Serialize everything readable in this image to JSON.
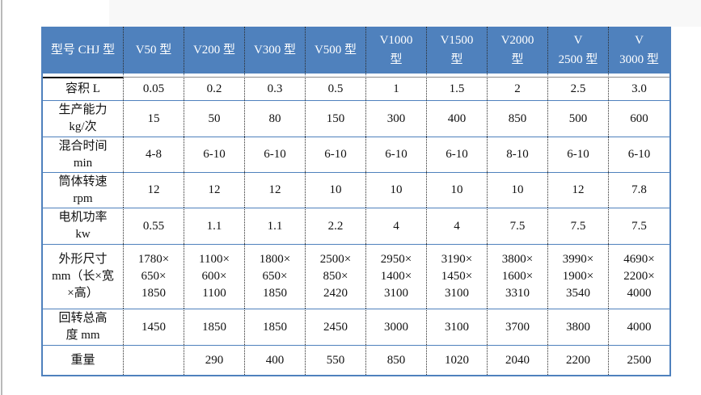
{
  "page": {
    "accent_blue": "#4f81bd",
    "border_dotted": "#2a2a2a"
  },
  "table": {
    "header": [
      "型号 CHJ 型",
      "V50 型",
      "V200 型",
      "V300 型",
      "V500 型",
      "V1000\n型",
      "V1500\n型",
      "V2000\n型",
      "V\n2500 型",
      "V\n3000 型"
    ],
    "rows": [
      {
        "label": "容积 L",
        "cells": [
          "0.05",
          "0.2",
          "0.3",
          "0.5",
          "1",
          "1.5",
          "2",
          "2.5",
          "3.0"
        ]
      },
      {
        "label": "生产能力\nkg/次",
        "cells": [
          "15",
          "50",
          "80",
          "150",
          "300",
          "400",
          "850",
          "500",
          "600"
        ]
      },
      {
        "label": "混合时间\nmin",
        "cells": [
          "4-8",
          "6-10",
          "6-10",
          "6-10",
          "6-10",
          "6-10",
          "8-10",
          "6-10",
          "6-10"
        ]
      },
      {
        "label": "筒体转速\nrpm",
        "cells": [
          "12",
          "12",
          "12",
          "10",
          "10",
          "10",
          "10",
          "12",
          "7.8"
        ]
      },
      {
        "label": "电机功率\nkw",
        "cells": [
          "0.55",
          "1.1",
          "1.1",
          "2.2",
          "4",
          "4",
          "7.5",
          "7.5",
          "7.5"
        ]
      },
      {
        "label": "外形尺寸\nmm（长×宽\n×高）",
        "cells": [
          "1780×\n650×\n1850",
          "1100×\n600×\n1100",
          "1800×\n650×\n1850",
          "2500×\n850×\n2420",
          "2950×\n1400×\n3100",
          "3190×\n1450×\n3100",
          "3800×\n1600×\n3310",
          "3990×\n1900×\n3540",
          "4690×\n2200×\n4000"
        ]
      },
      {
        "label": "回转总高\n度 mm",
        "cells": [
          "1450",
          "1850",
          "1850",
          "2450",
          "3000",
          "3100",
          "3700",
          "3800",
          "4000"
        ]
      },
      {
        "label": "重量",
        "cells": [
          "",
          "290",
          "400",
          "550",
          "850",
          "1020",
          "2040",
          "2200",
          "2500"
        ]
      }
    ]
  }
}
